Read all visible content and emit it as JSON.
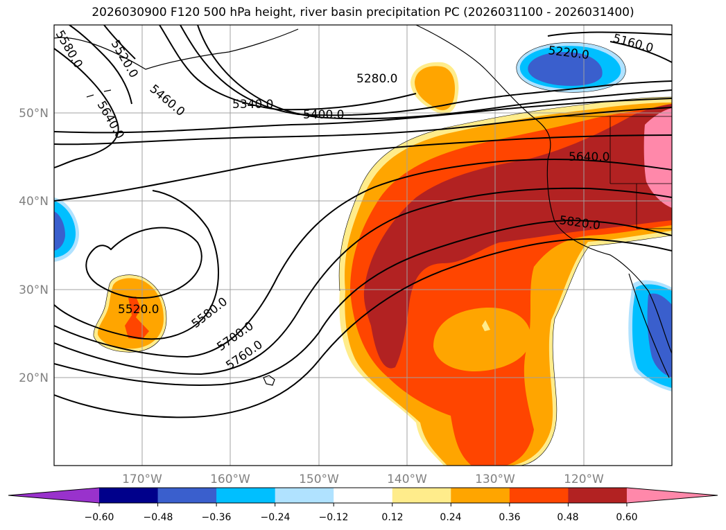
{
  "title": "2026030900 F120 500 hPa height, river basin precipitation PC (2026031100 - 2026031400)",
  "map": {
    "projection": "PlateCarree",
    "lon_range": [
      -180,
      -110
    ],
    "lat_range": [
      10,
      60
    ],
    "gridlines": true,
    "lat_labels": [
      "50°N",
      "40°N",
      "30°N",
      "20°N"
    ],
    "lon_labels": [
      "170°W",
      "160°W",
      "150°W",
      "140°W",
      "130°W",
      "120°W"
    ],
    "fields": {
      "shaded": "river basin precipitation PC",
      "contours": "500 hPa height"
    }
  },
  "colorbar": {
    "ticks": [
      "−0.60",
      "−0.48",
      "−0.36",
      "−0.24",
      "−0.12",
      "0.12",
      "0.24",
      "0.36",
      "0.48",
      "0.60"
    ],
    "colors": [
      "#9932cc",
      "#00008b",
      "#3a5fcd",
      "#00bfff",
      "#b0e2ff",
      "#ffffff",
      "#ffec8b",
      "#ffa500",
      "#ff4500",
      "#b22222",
      "#ff88aa"
    ],
    "extend": "both"
  },
  "contour_labels": [
    {
      "text": "5520.0"
    },
    {
      "text": "5460.0"
    },
    {
      "text": "5640.0"
    },
    {
      "text": "5340.0"
    },
    {
      "text": "5280.0"
    },
    {
      "text": "5400.0"
    },
    {
      "text": "5220.0"
    },
    {
      "text": "5160.0"
    },
    {
      "text": "5640.0"
    },
    {
      "text": "5820.0"
    },
    {
      "text": "5520.0"
    },
    {
      "text": "5580.0"
    },
    {
      "text": "5700.0"
    },
    {
      "text": "5760.0"
    },
    {
      "text": "5580.0"
    }
  ]
}
